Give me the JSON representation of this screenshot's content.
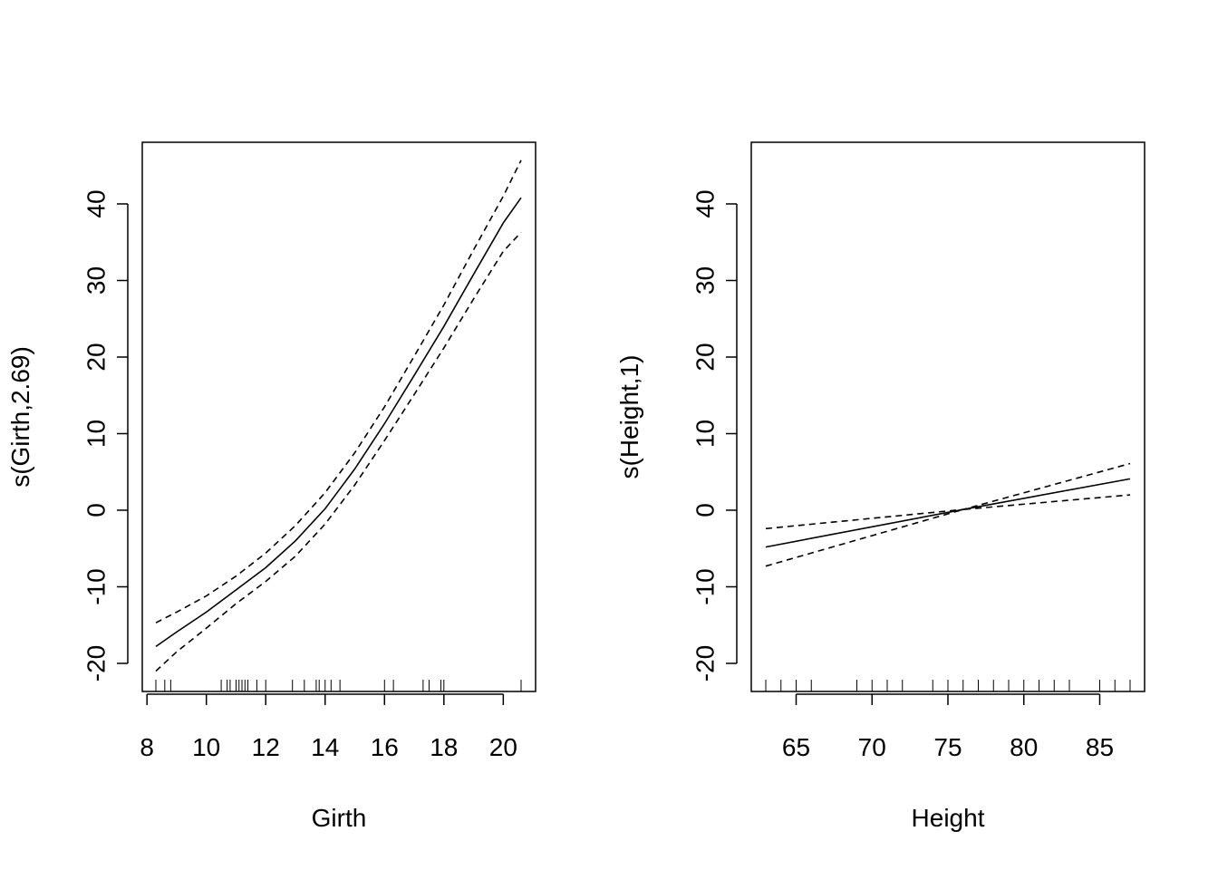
{
  "chart_data": [
    {
      "type": "line",
      "xlabel": "Girth",
      "ylabel": "s(Girth,2.69)",
      "xlim": [
        8.3,
        20.6
      ],
      "ylim": [
        -20,
        40
      ],
      "xticks": [
        "8",
        "10",
        "12",
        "14",
        "16",
        "18",
        "20"
      ],
      "yticks": [
        "-20",
        "-10",
        "0",
        "10",
        "20",
        "30",
        "40"
      ],
      "grid": false,
      "series": [
        {
          "style": "solid",
          "x": [
            8.3,
            9,
            10,
            11,
            12,
            13,
            14,
            15,
            16,
            17,
            18,
            19,
            20,
            20.6
          ],
          "y": [
            -17.8,
            -15.9,
            -13.3,
            -10.4,
            -7.5,
            -4.0,
            0.2,
            5.4,
            11.3,
            17.6,
            24.0,
            30.8,
            37.5,
            40.8
          ]
        },
        {
          "style": "dashed",
          "x": [
            8.3,
            9,
            10,
            11,
            12,
            13,
            14,
            15,
            16,
            17,
            18,
            19,
            20,
            20.6
          ],
          "y": [
            -14.7,
            -13.3,
            -11.2,
            -8.6,
            -5.6,
            -2.0,
            2.3,
            7.5,
            13.5,
            20.1,
            26.8,
            34.0,
            41.0,
            45.7
          ]
        },
        {
          "style": "dashed",
          "x": [
            8.3,
            9,
            10,
            11,
            12,
            13,
            14,
            15,
            16,
            17,
            18,
            19,
            20,
            20.6
          ],
          "y": [
            -21.0,
            -18.5,
            -15.4,
            -12.2,
            -9.3,
            -6.0,
            -1.8,
            3.3,
            9.1,
            15.1,
            21.2,
            27.6,
            33.8,
            36.3
          ]
        }
      ],
      "rug": [
        8.3,
        8.6,
        8.8,
        10.5,
        10.7,
        10.8,
        11.0,
        11.1,
        11.2,
        11.3,
        11.4,
        11.7,
        12.0,
        12.9,
        13.3,
        13.7,
        13.8,
        14.0,
        14.2,
        14.5,
        16.0,
        16.3,
        17.3,
        17.5,
        17.9,
        18.0,
        20.6
      ]
    },
    {
      "type": "line",
      "xlabel": "Height",
      "ylabel": "s(Height,1)",
      "xlim": [
        63,
        87
      ],
      "ylim": [
        -20,
        40
      ],
      "xticks": [
        "65",
        "70",
        "75",
        "80",
        "85"
      ],
      "yticks": [
        "-20",
        "-10",
        "0",
        "10",
        "20",
        "30",
        "40"
      ],
      "grid": false,
      "series": [
        {
          "style": "solid",
          "x": [
            63,
            76,
            87
          ],
          "y": [
            -4.8,
            0.1,
            4.1
          ]
        },
        {
          "style": "dashed",
          "x": [
            63,
            76,
            87
          ],
          "y": [
            -2.4,
            0.1,
            6.1
          ]
        },
        {
          "style": "dashed",
          "x": [
            63,
            76,
            87
          ],
          "y": [
            -7.3,
            0.1,
            2.0
          ]
        }
      ],
      "rug": [
        63,
        64,
        65,
        66,
        69,
        70,
        71,
        72,
        74,
        75,
        76,
        77,
        78,
        79,
        80,
        81,
        82,
        83,
        85,
        86,
        87
      ]
    }
  ]
}
